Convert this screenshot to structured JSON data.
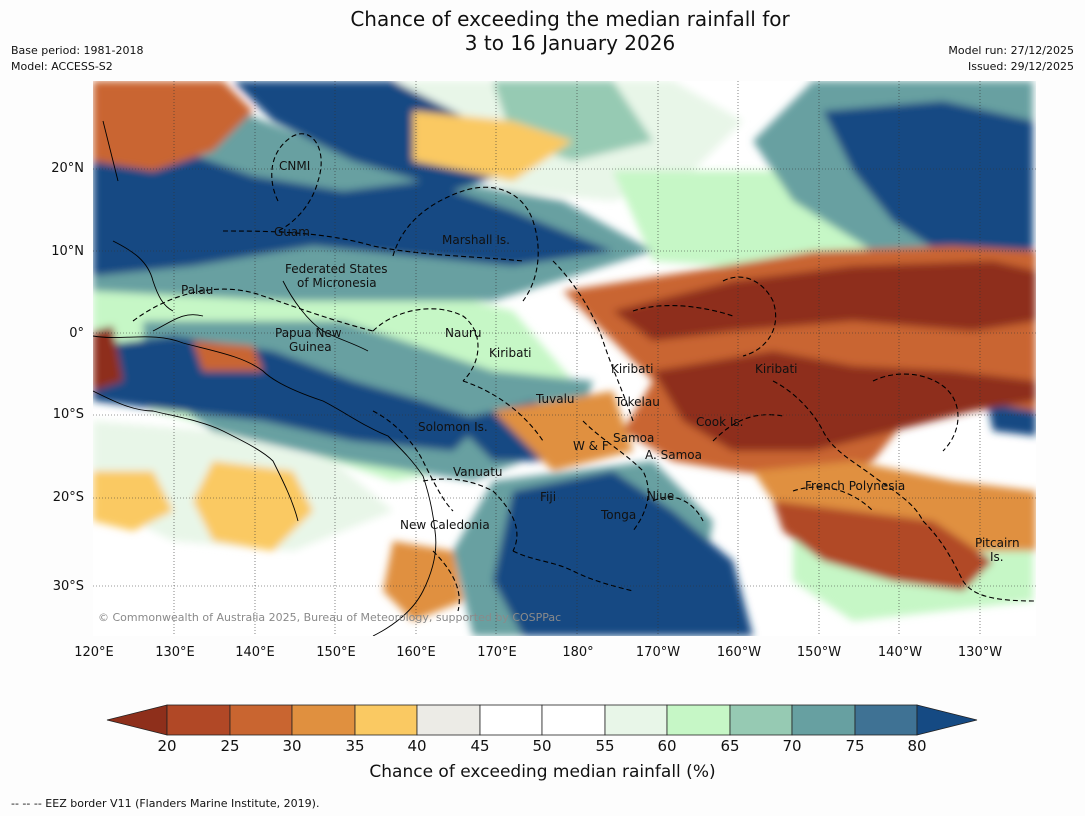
{
  "title": {
    "line1": "Chance of exceeding the median rainfall for",
    "line2": "3 to 16 January 2026"
  },
  "meta": {
    "base_period": "Base period: 1981-2018",
    "model": "Model: ACCESS-S2",
    "model_run": "Model run: 27/12/2025",
    "issued": "Issued: 29/12/2025"
  },
  "map": {
    "lat_labels": [
      "20°N",
      "10°N",
      "0°",
      "10°S",
      "20°S",
      "30°S"
    ],
    "lon_labels": [
      "120°E",
      "130°E",
      "140°E",
      "150°E",
      "160°E",
      "170°E",
      "180°",
      "170°W",
      "160°W",
      "150°W",
      "140°W",
      "130°W"
    ],
    "regions": {
      "cnmi": "CNMI",
      "guam": "Guam",
      "marshall": "Marshall Is.",
      "fsm_1": "Federated States",
      "fsm_2": "of Micronesia",
      "palau": "Palau",
      "png_1": "Papua New",
      "png_2": "Guinea",
      "nauru": "Nauru",
      "kiribati_west": "Kiribati",
      "kiribati_central": "Kiribati",
      "kiribati_east": "Kiribati",
      "tuvalu": "Tuvalu",
      "tokelau": "Tokelau",
      "solomon": "Solomon Is.",
      "wf": "W & F",
      "samoa": "Samoa",
      "asamoa": "A. Samoa",
      "cook": "Cook Is.",
      "vanuatu": "Vanuatu",
      "fiji": "Fiji",
      "niue": "Niue",
      "tonga": "Tonga",
      "frpoly": "French Polynesia",
      "pitcairn_1": "Pitcairn",
      "pitcairn_2": "Is.",
      "new_caledonia": "New Caledonia"
    },
    "copyright": "© Commonwealth of Australia 2025, Bureau of Meteorology, supported by COSPPac"
  },
  "colorbar": {
    "ticks": [
      "20",
      "25",
      "30",
      "35",
      "40",
      "45",
      "50",
      "55",
      "60",
      "65",
      "70",
      "75",
      "80"
    ],
    "colors": [
      "#8e2f1b",
      "#b14826",
      "#c96530",
      "#e0903f",
      "#fac962",
      "#ecebe6",
      "#ffffff",
      "#ffffff",
      "#e8f6e8",
      "#c6f7c6",
      "#96cab3",
      "#67a0a1",
      "#3f7294",
      "#154a83"
    ],
    "title": "Chance of exceeding median rainfall (%)"
  },
  "footer": "--  --  -- EEZ border V11 (Flanders Marine Institute, 2019)."
}
